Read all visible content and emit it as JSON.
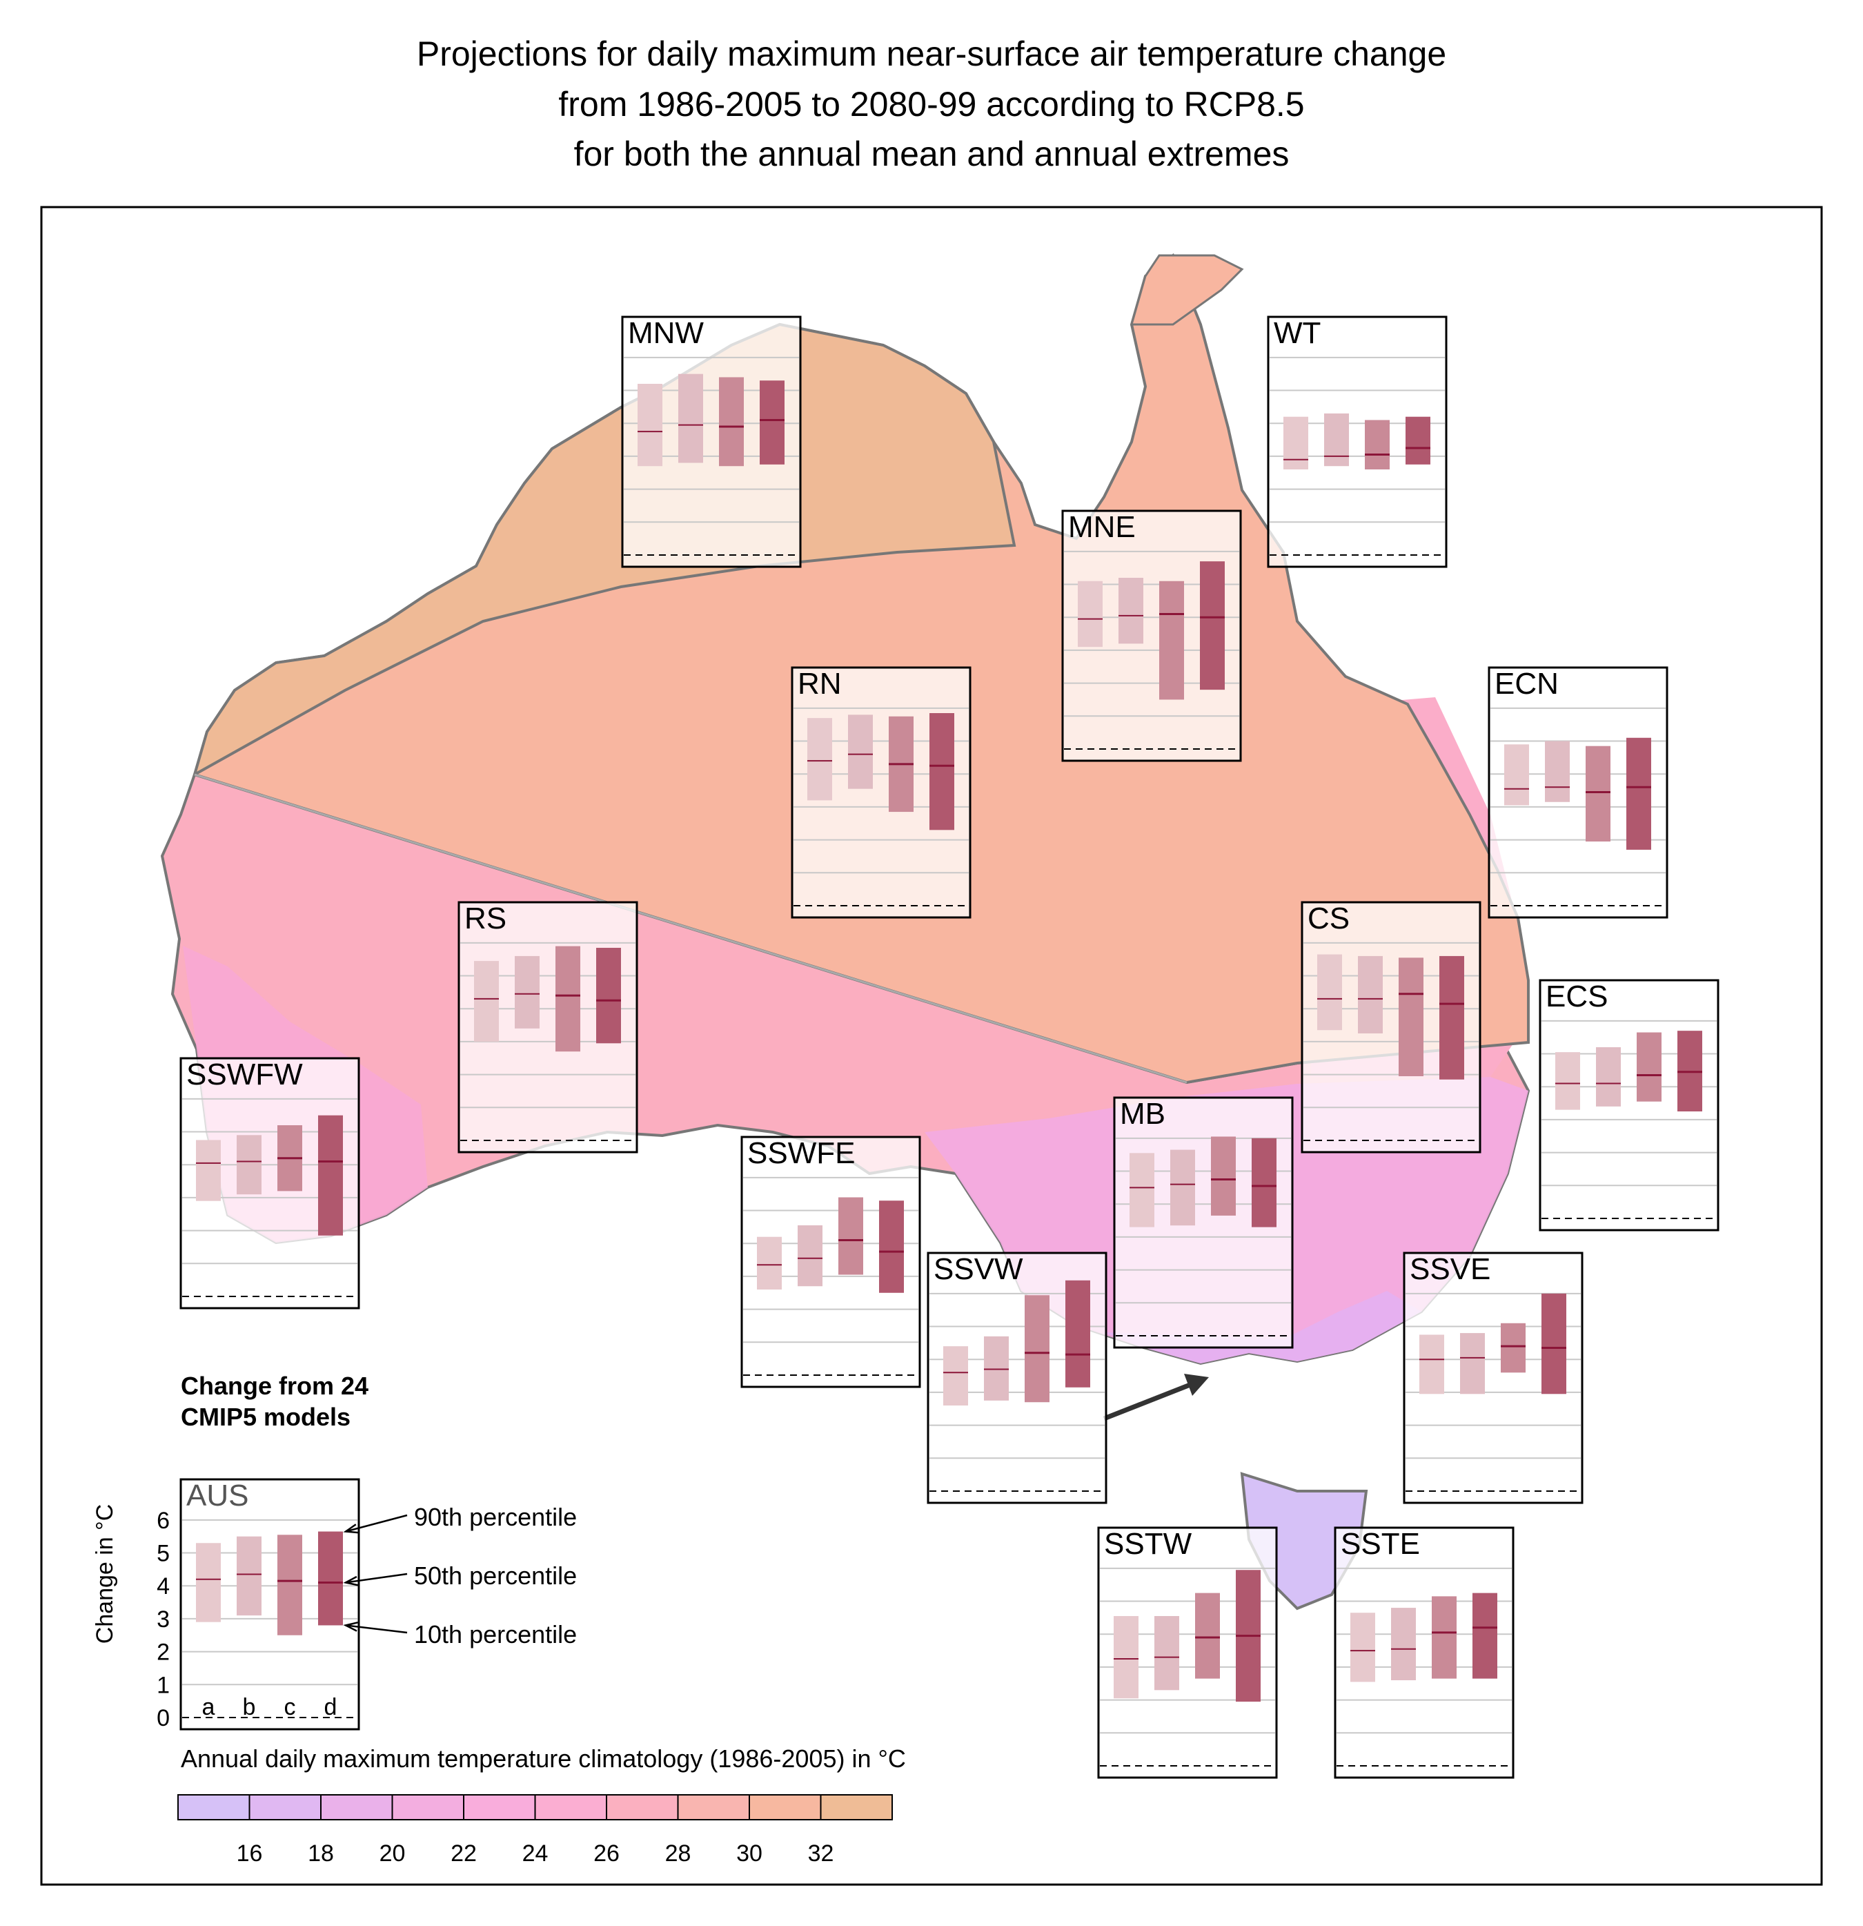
{
  "title_lines": [
    "Projections for daily maximum near-surface air temperature change",
    "from 1986-2005 to 2080-99 according to RCP8.5",
    "for both the annual mean and annual extremes"
  ],
  "legend": {
    "heading_lines": [
      "Change from 24",
      "CMIP5 models"
    ],
    "ylabel": "Change in  °C",
    "percentiles": [
      "90th percentile",
      "50th percentile",
      "10th percentile"
    ],
    "bar_letters": [
      "a",
      "b",
      "c",
      "d"
    ]
  },
  "colorbar": {
    "label": "Annual daily maximum temperature climatology (1986-2005) in  °C",
    "ticks": [
      "16",
      "18",
      "20",
      "22",
      "24",
      "26",
      "28",
      "30",
      "32"
    ],
    "colors": [
      "#d6c1f7",
      "#e0b8f2",
      "#eab1ea",
      "#f3aee0",
      "#f9addc",
      "#fbaed2",
      "#fbb0c0",
      "#f9b5b0",
      "#f7b8a0",
      "#efbc96"
    ]
  },
  "series_colors": [
    "#e7c9cd",
    "#e0bcc3",
    "#c98a97",
    "#b0586e"
  ],
  "median_color": "#8b1538",
  "chart_data": {
    "type": "bar",
    "bar_kind": "range (10th-90th percentile) with 50th percentile marker",
    "bars": [
      "a",
      "b",
      "c",
      "d"
    ],
    "ylabel": "Change in  °C",
    "ylim": [
      0,
      6.5
    ],
    "yticks": [
      0,
      1,
      2,
      3,
      4,
      5,
      6
    ],
    "grid": true,
    "regions": [
      {
        "name": "AUS",
        "p10": [
          2.9,
          3.1,
          2.5,
          2.8
        ],
        "p50": [
          4.2,
          4.35,
          4.15,
          4.1
        ],
        "p90": [
          5.3,
          5.5,
          5.55,
          5.65
        ]
      },
      {
        "name": "MNW",
        "p10": [
          2.7,
          2.8,
          2.7,
          2.75
        ],
        "p50": [
          3.75,
          3.95,
          3.9,
          4.1
        ],
        "p90": [
          5.2,
          5.5,
          5.4,
          5.3
        ]
      },
      {
        "name": "WT",
        "p10": [
          2.6,
          2.7,
          2.6,
          2.75
        ],
        "p50": [
          2.9,
          3.0,
          3.05,
          3.25
        ],
        "p90": [
          4.2,
          4.3,
          4.1,
          4.2
        ]
      },
      {
        "name": "MNE",
        "p10": [
          3.1,
          3.2,
          1.5,
          1.8
        ],
        "p50": [
          3.95,
          4.05,
          4.1,
          4.0
        ],
        "p90": [
          5.1,
          5.2,
          5.1,
          5.7
        ]
      },
      {
        "name": "RN",
        "p10": [
          3.2,
          3.55,
          2.85,
          2.3
        ],
        "p50": [
          4.4,
          4.6,
          4.3,
          4.25
        ],
        "p90": [
          5.7,
          5.8,
          5.75,
          5.85
        ]
      },
      {
        "name": "ECN",
        "p10": [
          3.05,
          3.15,
          1.95,
          1.7
        ],
        "p50": [
          3.55,
          3.6,
          3.45,
          3.6
        ],
        "p90": [
          4.9,
          5.0,
          4.85,
          5.1
        ]
      },
      {
        "name": "CS",
        "p10": [
          3.35,
          3.25,
          1.95,
          1.85
        ],
        "p50": [
          4.3,
          4.3,
          4.45,
          4.15
        ],
        "p90": [
          5.65,
          5.6,
          5.55,
          5.6
        ]
      },
      {
        "name": "ECS",
        "p10": [
          3.3,
          3.4,
          3.55,
          3.25
        ],
        "p50": [
          4.1,
          4.1,
          4.35,
          4.45
        ],
        "p90": [
          5.05,
          5.2,
          5.65,
          5.7
        ]
      },
      {
        "name": "RS",
        "p10": [
          3.0,
          3.4,
          2.7,
          2.95
        ],
        "p50": [
          4.3,
          4.45,
          4.4,
          4.25
        ],
        "p90": [
          5.45,
          5.6,
          5.9,
          5.85
        ]
      },
      {
        "name": "SSWFW",
        "p10": [
          2.9,
          3.1,
          3.2,
          1.85
        ],
        "p50": [
          4.05,
          4.1,
          4.2,
          4.1
        ],
        "p90": [
          4.75,
          4.9,
          5.2,
          5.5
        ]
      },
      {
        "name": "SSWFE",
        "p10": [
          2.6,
          2.7,
          3.05,
          2.5
        ],
        "p50": [
          3.35,
          3.55,
          4.1,
          3.75
        ],
        "p90": [
          4.2,
          4.55,
          5.4,
          5.3
        ]
      },
      {
        "name": "MB",
        "p10": [
          3.3,
          3.35,
          3.65,
          3.3
        ],
        "p50": [
          4.5,
          4.6,
          4.75,
          4.55
        ],
        "p90": [
          5.55,
          5.65,
          6.05,
          6.0
        ]
      },
      {
        "name": "SSVW",
        "p10": [
          2.6,
          2.75,
          2.7,
          3.15
        ],
        "p50": [
          3.6,
          3.7,
          4.2,
          4.15
        ],
        "p90": [
          4.4,
          4.7,
          5.95,
          6.4
        ]
      },
      {
        "name": "SSVE",
        "p10": [
          2.95,
          2.95,
          3.6,
          2.95
        ],
        "p50": [
          4.0,
          4.05,
          4.4,
          4.35
        ],
        "p90": [
          4.75,
          4.8,
          5.1,
          6.0
        ]
      },
      {
        "name": "SSTW",
        "p10": [
          2.05,
          2.3,
          2.65,
          1.95
        ],
        "p50": [
          3.25,
          3.3,
          3.9,
          3.95
        ],
        "p90": [
          4.55,
          4.55,
          5.25,
          5.95
        ]
      },
      {
        "name": "SSTE",
        "p10": [
          2.55,
          2.6,
          2.65,
          2.65
        ],
        "p50": [
          3.5,
          3.55,
          4.05,
          4.2
        ],
        "p90": [
          4.65,
          4.8,
          5.15,
          5.25
        ]
      }
    ]
  }
}
